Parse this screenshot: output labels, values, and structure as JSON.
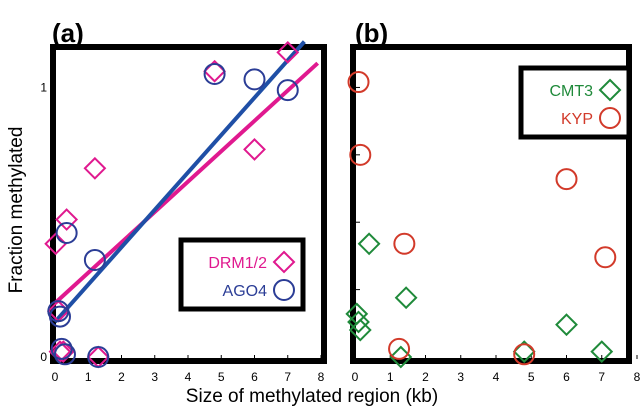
{
  "chart_data": [
    {
      "type": "scatter",
      "panel_label": "(a)",
      "xlim": [
        0,
        8
      ],
      "ylim": [
        0,
        1.15
      ],
      "x_ticks": [
        "0",
        "1",
        "2",
        "3",
        "4",
        "5",
        "6",
        "7",
        "8"
      ],
      "y_ticks": [
        {
          "value": 0,
          "label": "0"
        },
        {
          "value": 1,
          "label": "1"
        }
      ],
      "series": [
        {
          "name": "DRM1/2",
          "marker": "diamond",
          "color": "#e0198f",
          "points": [
            [
              0.02,
              0.42
            ],
            [
              0.1,
              0.17
            ],
            [
              0.15,
              0.02
            ],
            [
              0.25,
              0.02
            ],
            [
              0.35,
              0.51
            ],
            [
              1.2,
              0.7
            ],
            [
              1.3,
              0.0
            ],
            [
              4.8,
              1.06
            ],
            [
              6.0,
              0.77
            ],
            [
              7.0,
              1.13
            ]
          ]
        },
        {
          "name": "AGO4",
          "marker": "circle",
          "color": "#2b3d96",
          "points": [
            [
              0.1,
              0.17
            ],
            [
              0.15,
              0.15
            ],
            [
              0.2,
              0.03
            ],
            [
              0.3,
              0.01
            ],
            [
              0.35,
              0.46
            ],
            [
              1.2,
              0.36
            ],
            [
              1.3,
              0.0
            ],
            [
              4.8,
              1.05
            ],
            [
              6.0,
              1.03
            ],
            [
              7.0,
              0.99
            ]
          ]
        }
      ],
      "fit_lines": [
        {
          "series": "DRM1/2",
          "color": "#e0198f",
          "x": [
            0,
            7.9
          ],
          "y": [
            0.2,
            1.09
          ]
        },
        {
          "series": "AGO4",
          "color": "#1f4fa6",
          "x": [
            0,
            7.5
          ],
          "y": [
            0.13,
            1.17
          ]
        }
      ],
      "legend": {
        "position": "lower-right"
      }
    },
    {
      "type": "scatter",
      "panel_label": "(b)",
      "xlim": [
        0,
        8
      ],
      "ylim": [
        0,
        1.15
      ],
      "x_ticks": [
        "0",
        "1",
        "2",
        "3",
        "4",
        "5",
        "6",
        "7",
        "8"
      ],
      "series": [
        {
          "name": "CMT3",
          "marker": "diamond",
          "color": "#1f8a3a",
          "points": [
            [
              0.05,
              0.16
            ],
            [
              0.1,
              0.13
            ],
            [
              0.15,
              0.1
            ],
            [
              0.4,
              0.42
            ],
            [
              1.3,
              0.0
            ],
            [
              1.45,
              0.22
            ],
            [
              4.8,
              0.02
            ],
            [
              6.0,
              0.12
            ],
            [
              7.0,
              0.02
            ]
          ]
        },
        {
          "name": "KYP",
          "marker": "circle",
          "color": "#d23a2a",
          "points": [
            [
              0.1,
              1.02
            ],
            [
              0.15,
              0.75
            ],
            [
              1.25,
              0.03
            ],
            [
              1.4,
              0.42
            ],
            [
              4.8,
              0.01
            ],
            [
              6.0,
              0.66
            ],
            [
              7.1,
              0.37
            ]
          ]
        }
      ],
      "legend": {
        "position": "top-right"
      }
    }
  ],
  "shared": {
    "xlabel": "Size of methylated region (kb)",
    "ylabel": "Fraction methylated"
  }
}
